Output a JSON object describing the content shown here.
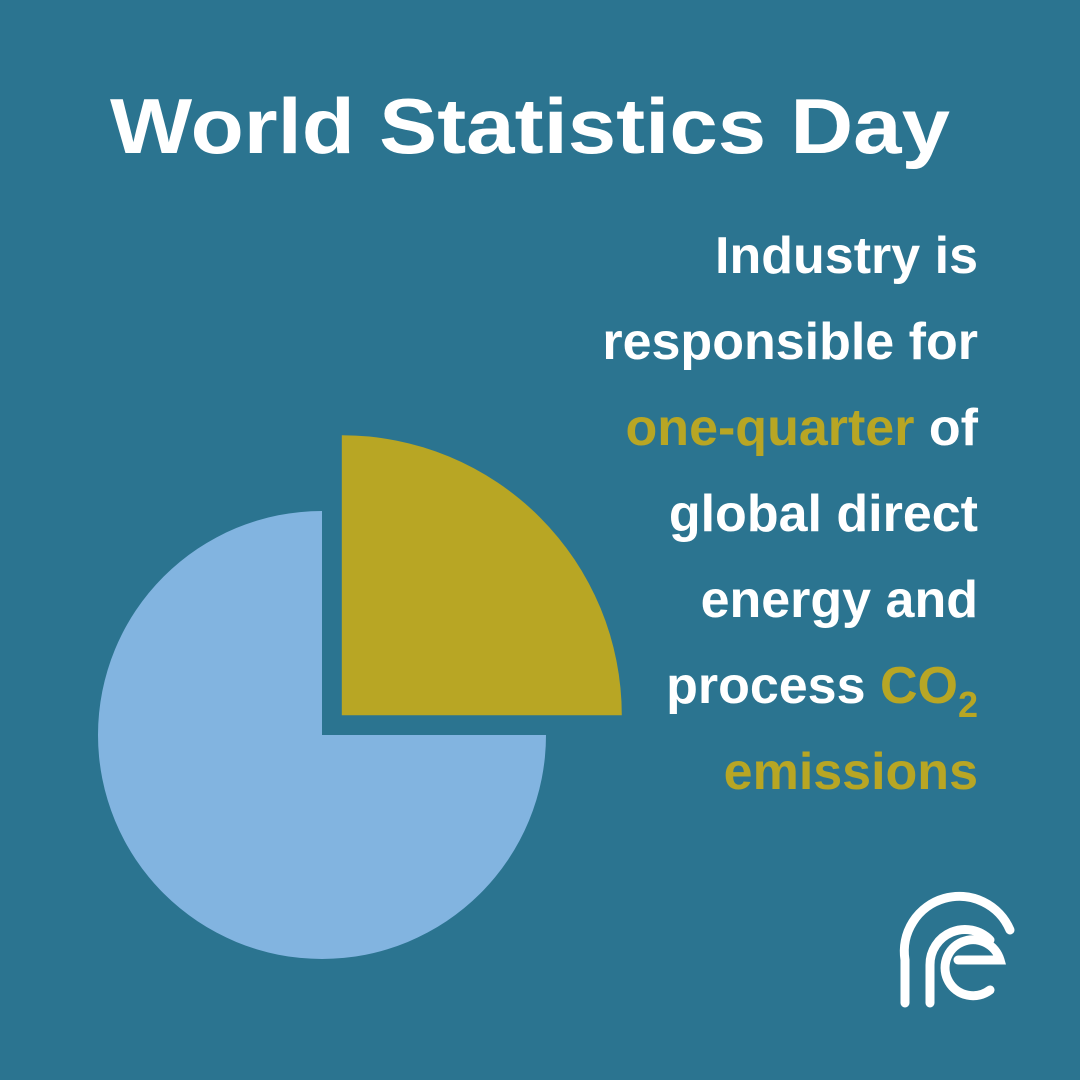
{
  "chart_data": {
    "type": "pie",
    "title": "World Statistics Day",
    "values": [
      25,
      75
    ],
    "colors": [
      "#b8a624",
      "#82b4e0"
    ],
    "annotation": [
      [
        {
          "text": "Industry is"
        }
      ],
      [
        {
          "text": "responsible for"
        }
      ],
      [
        {
          "text": "one-quarter",
          "highlight": true
        },
        {
          "text": " of"
        }
      ],
      [
        {
          "text": "global direct"
        }
      ],
      [
        {
          "text": "energy and"
        }
      ],
      [
        {
          "text": "process "
        },
        {
          "text": "CO",
          "highlight": true
        },
        {
          "text": "2",
          "highlight": true,
          "subscript": true
        }
      ],
      [
        {
          "text": "emissions",
          "highlight": true
        }
      ]
    ],
    "highlight_color": "#b8a624"
  }
}
